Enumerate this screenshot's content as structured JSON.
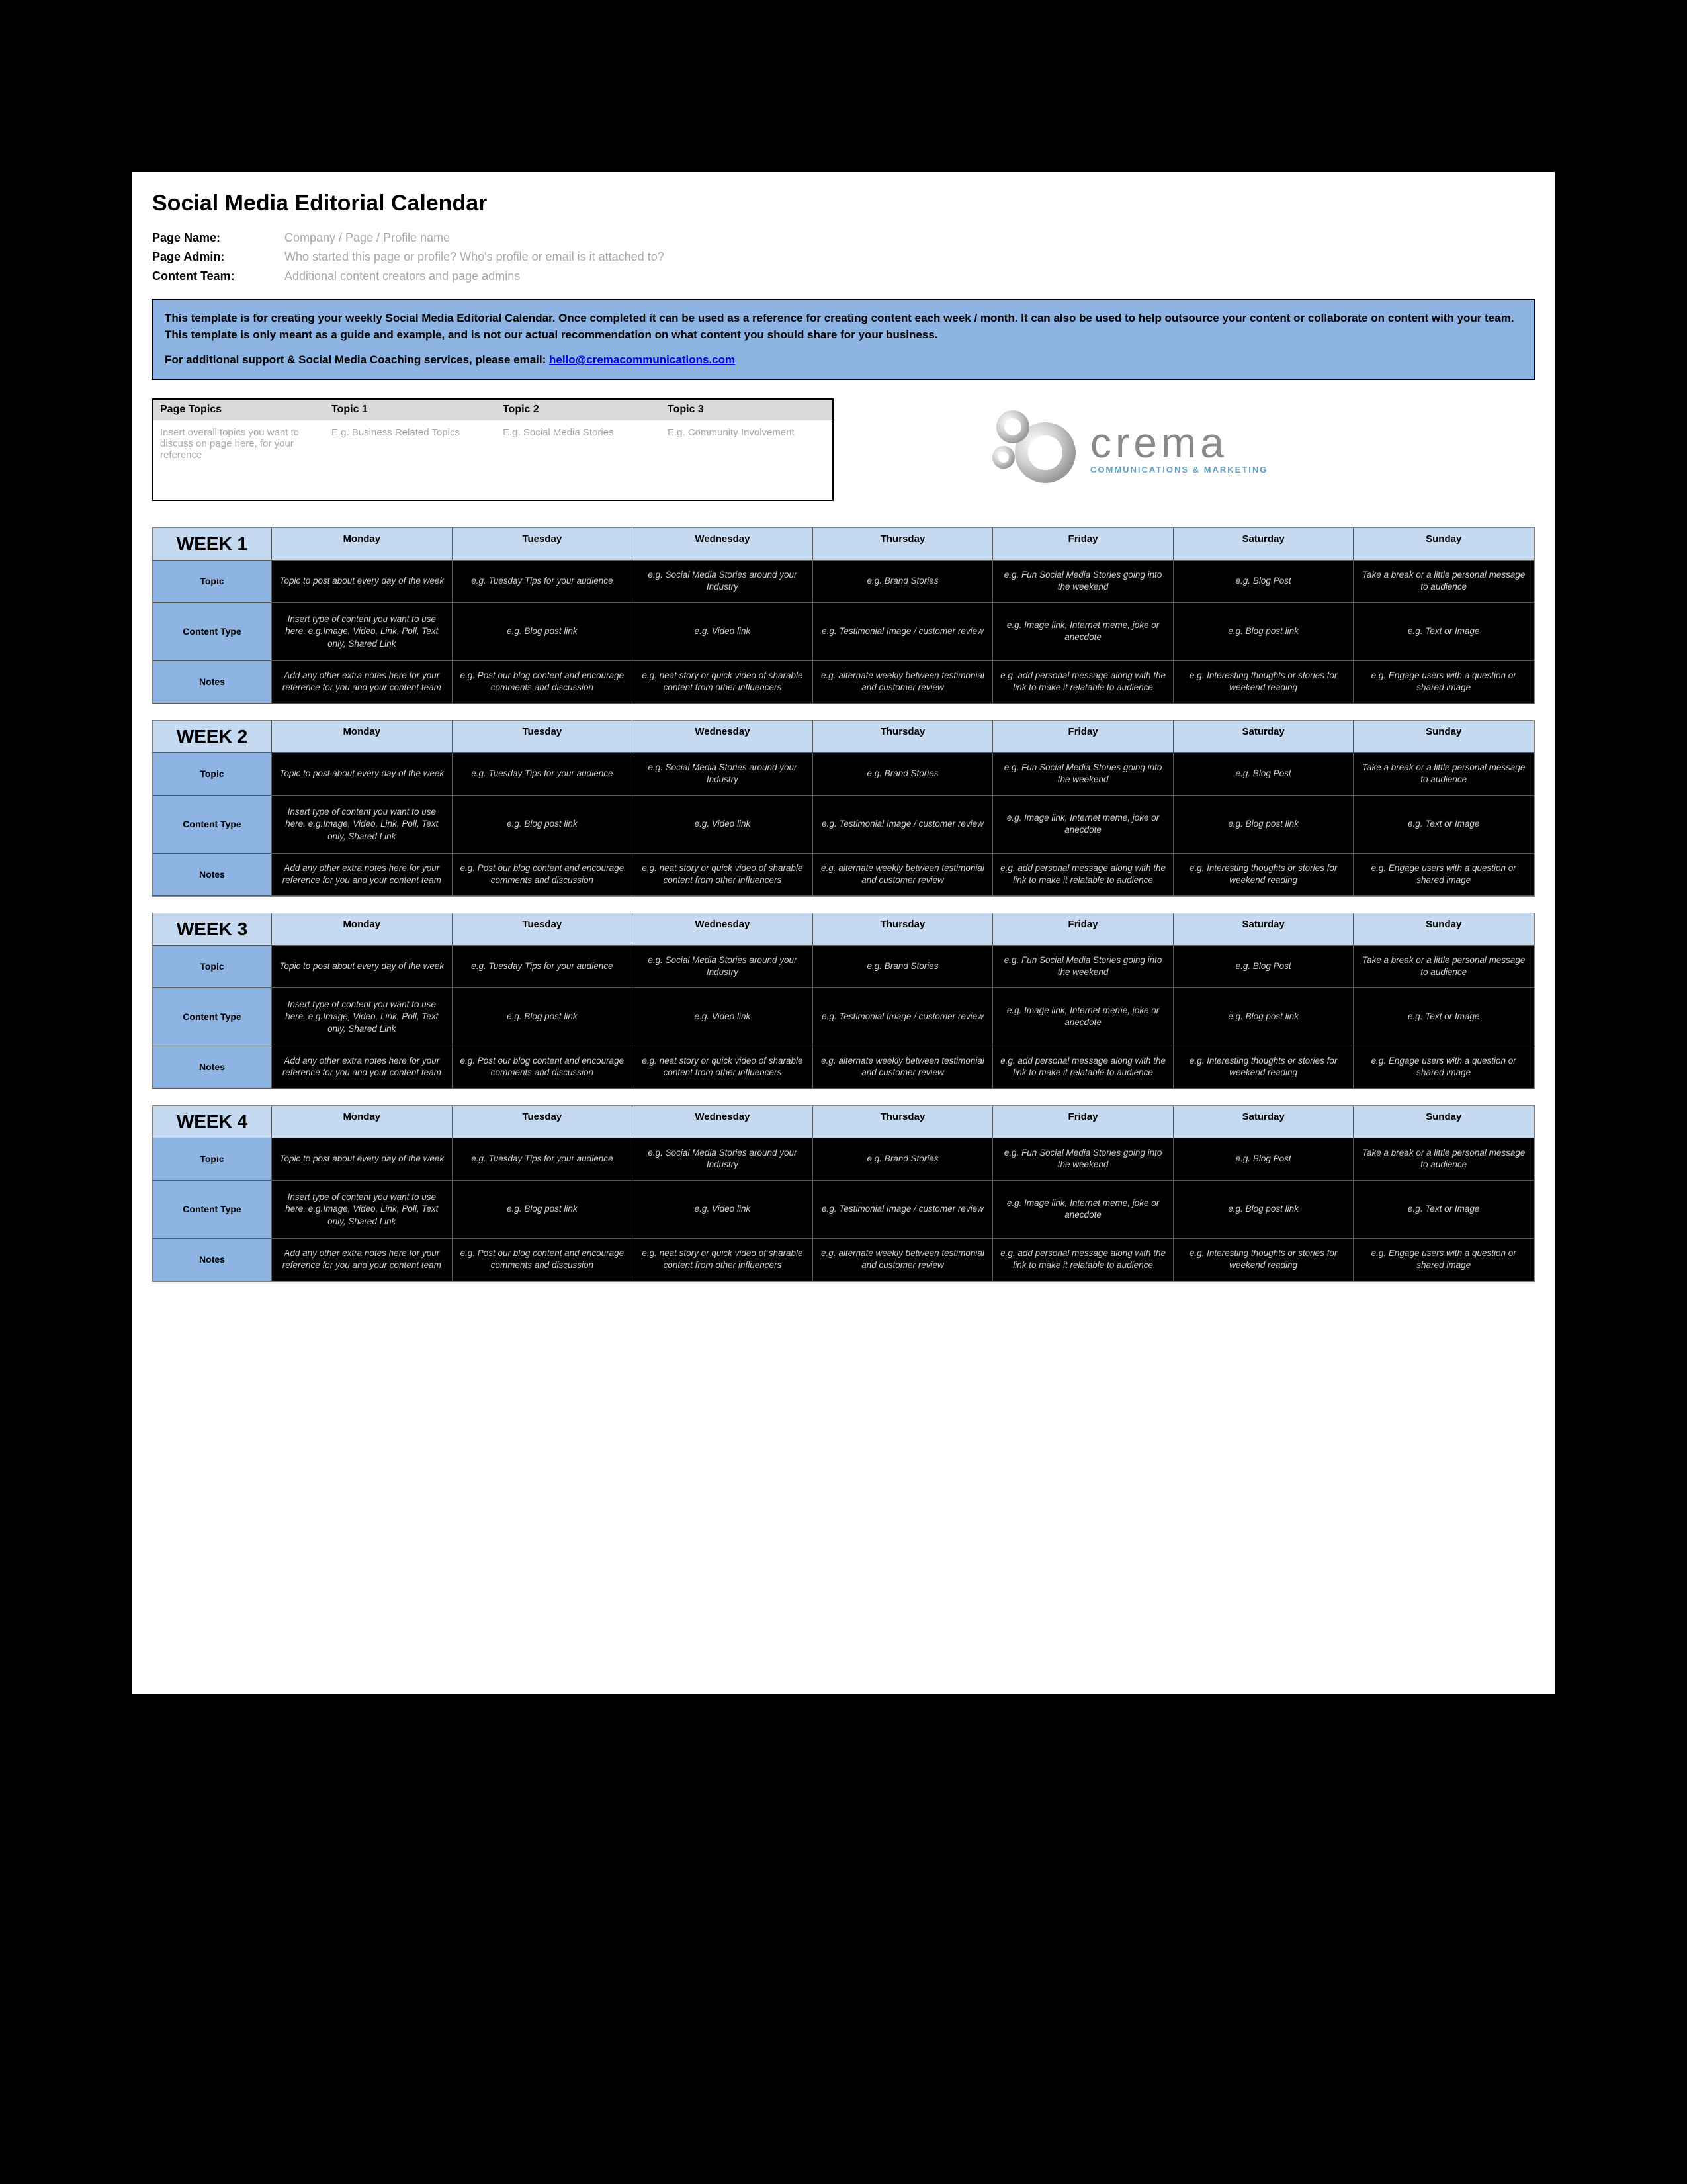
{
  "title": "Social Media Editorial Calendar",
  "meta": {
    "page_name_label": "Page Name:",
    "page_name_value": "Company / Page / Profile name",
    "page_admin_label": "Page Admin:",
    "page_admin_value": "Who started this page or profile? Who's profile or email is it attached to?",
    "content_team_label": "Content Team:",
    "content_team_value": "Additional content creators and page admins"
  },
  "banner": {
    "line1": "This template is for creating your weekly Social Media Editorial Calendar. Once completed it can be used as a reference for creating content each week / month. It can also be used to help outsource your content or collaborate on content with your team. This template is only meant as a guide and example, and is not our actual recommendation on what content you should share for your business.",
    "line2_pre": "For additional support & Social Media Coaching services, please email:  ",
    "email": "hello@cremacommunications.com"
  },
  "topics": {
    "headers": [
      "Page Topics",
      "Topic 1",
      "Topic 2",
      "Topic 3"
    ],
    "row": [
      "Insert overall topics you want to discuss on page here, for your reference",
      "E.g. Business Related Topics",
      "E.g. Social Media Stories",
      "E.g. Community Involvement"
    ]
  },
  "logo": {
    "word": "crema",
    "sub": "COMMUNICATIONS & MARKETING"
  },
  "colors": {
    "page_bg": "#ffffff",
    "outer_bg": "#000000",
    "banner_bg": "#8db4e2",
    "header_light": "#c5d9f1",
    "rowlabel_bg": "#8db4e2",
    "cell_bg": "#000000",
    "cell_fg": "#d0d0d0",
    "meta_gray": "#a8a8a8",
    "link": "#0000ee"
  },
  "days": [
    "Monday",
    "Tuesday",
    "Wednesday",
    "Thursday",
    "Friday",
    "Saturday",
    "Sunday"
  ],
  "row_labels": [
    "Topic",
    "Content Type",
    "Notes"
  ],
  "week_titles": [
    "WEEK 1",
    "WEEK 2",
    "WEEK 3",
    "WEEK 4"
  ],
  "week_rows": [
    [
      "Topic to post about every day of the week",
      "e.g. Tuesday Tips for your audience",
      "e.g. Social Media Stories around your Industry",
      "e.g. Brand Stories",
      "e.g. Fun Social Media Stories going into the weekend",
      "e.g. Blog Post",
      "Take a break or a little personal message to audience"
    ],
    [
      "Insert type of content you want to use here. e.g.Image, Video, Link, Poll, Text only, Shared Link",
      "e.g. Blog post link",
      "e.g. Video link",
      "e.g. Testimonial Image / customer review",
      "e.g. Image link, Internet meme, joke or anecdote",
      "e.g. Blog post link",
      "e.g. Text or Image"
    ],
    [
      "Add any other extra notes here for your reference for you and your content team",
      "e.g. Post our blog content and encourage comments and discussion",
      "e.g. neat story or quick video of sharable content from other influencers",
      "e.g. alternate weekly between testimonial and customer review",
      "e.g. add personal message along with the link to make it relatable to audience",
      "e.g. Interesting thoughts or stories for weekend reading",
      "e.g. Engage users with a question or shared image"
    ]
  ]
}
